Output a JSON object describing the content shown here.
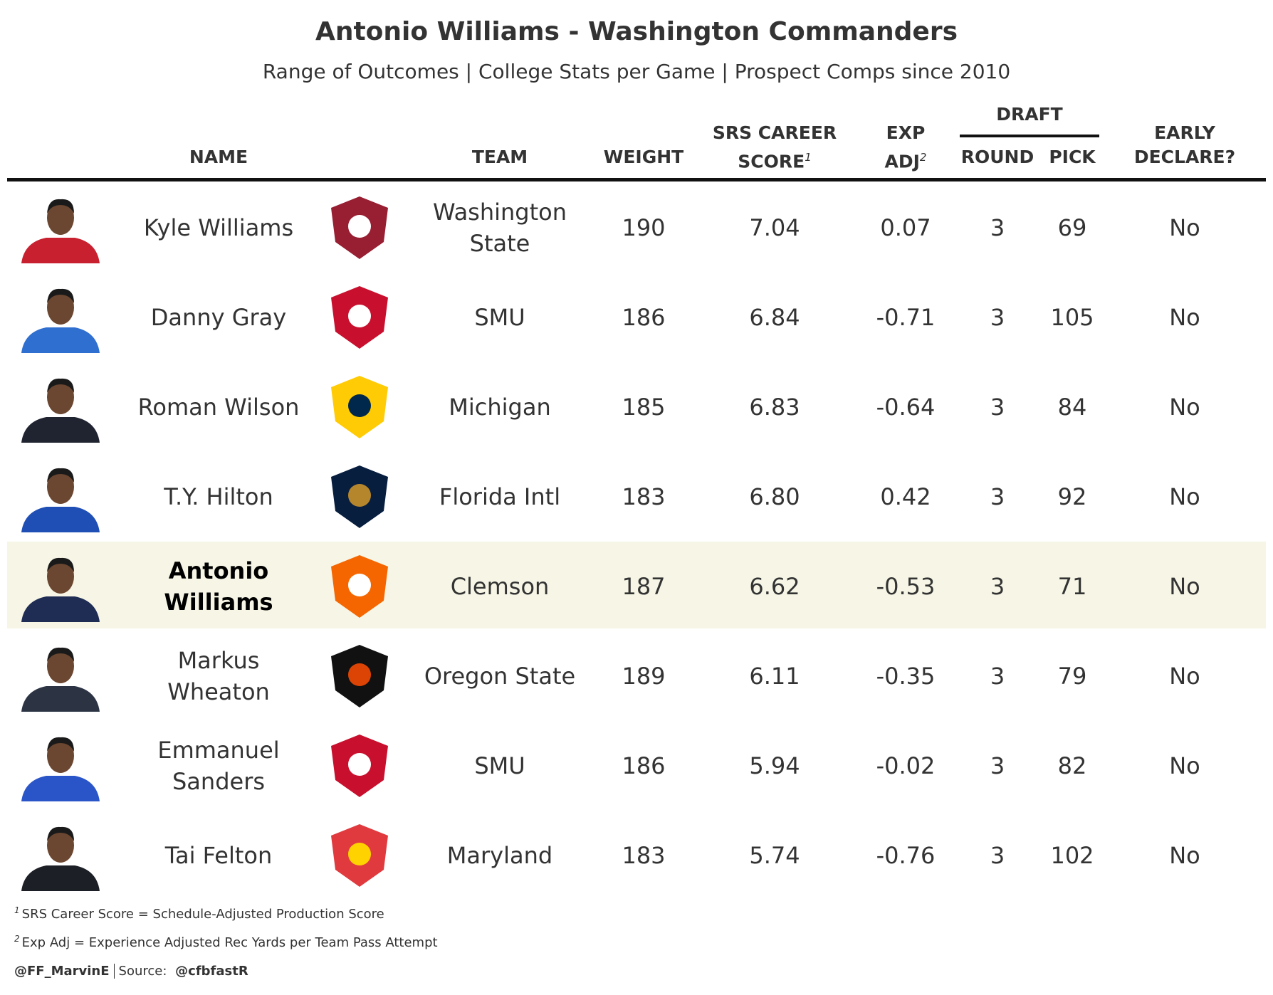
{
  "header": {
    "title": "Antonio Williams - Washington Commanders",
    "subtitle": "Range of Outcomes | College Stats per Game | Prospect Comps since 2010"
  },
  "table": {
    "columns": {
      "name": "NAME",
      "team": "TEAM",
      "weight": "WEIGHT",
      "srs": "SRS CAREER SCORE",
      "srs_note": "1",
      "exp": "EXP ADJ",
      "exp_note": "2",
      "draft": "DRAFT",
      "round": "ROUND",
      "pick": "PICK",
      "early": "EARLY DECLARE?"
    },
    "rows": [
      [
        "Kyle Williams",
        "Washington State",
        "190",
        "7.04",
        "0.07",
        "3",
        "69",
        "No"
      ],
      [
        "Danny Gray",
        "SMU",
        "186",
        "6.84",
        "-0.71",
        "3",
        "105",
        "No"
      ],
      [
        "Roman Wilson",
        "Michigan",
        "185",
        "6.83",
        "-0.64",
        "3",
        "84",
        "No"
      ],
      [
        "T.Y. Hilton",
        "Florida Intl",
        "183",
        "6.80",
        "0.42",
        "3",
        "92",
        "No"
      ],
      [
        "Antonio Williams",
        "Clemson",
        "187",
        "6.62",
        "-0.53",
        "3",
        "71",
        "No"
      ],
      [
        "Markus Wheaton",
        "Oregon State",
        "189",
        "6.11",
        "-0.35",
        "3",
        "79",
        "No"
      ],
      [
        "Emmanuel Sanders",
        "SMU",
        "186",
        "5.94",
        "-0.02",
        "3",
        "82",
        "No"
      ],
      [
        "Tai Felton",
        "Maryland",
        "183",
        "5.74",
        "-0.76",
        "3",
        "102",
        "No"
      ]
    ]
  },
  "footnotes": [
    {
      "marker": "1",
      "text": "SRS Career Score = Schedule-Adjusted Production Score"
    },
    {
      "marker": "2",
      "text": "Exp Adj = Experience Adjusted Rec Yards per Team Pass Attempt"
    }
  ],
  "credit": {
    "handle": "@FF_MarvinE",
    "source_label": "Source:",
    "source": "@cfbfastR"
  }
}
